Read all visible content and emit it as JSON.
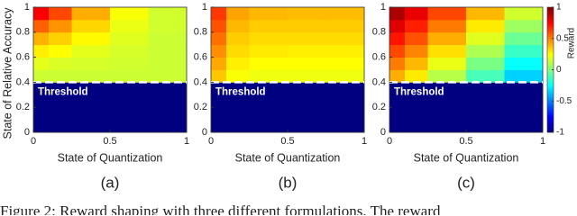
{
  "chart_data": [
    {
      "type": "heatmap",
      "xlabel": "State of Quantization",
      "ylabel": "State of Relative Accuracy",
      "panel_label": "(a)",
      "xlim": [
        0,
        1
      ],
      "ylim": [
        0,
        1
      ],
      "xticks": [
        0,
        0.5,
        1
      ],
      "yticks": [
        0,
        0.2,
        0.4,
        0.6,
        0.8,
        1
      ],
      "xbins": [
        0,
        0.1,
        0.25,
        0.5,
        0.75,
        1
      ],
      "ybins": [
        0,
        0.4,
        0.5,
        0.6,
        0.7,
        0.8,
        0.9,
        1
      ],
      "z": [
        [
          -1,
          -1,
          -1,
          -1,
          -1
        ],
        [
          0.15,
          0.15,
          0.15,
          0.15,
          0.15
        ],
        [
          0.2,
          0.18,
          0.17,
          0.16,
          0.15
        ],
        [
          0.28,
          0.25,
          0.2,
          0.17,
          0.15
        ],
        [
          0.4,
          0.34,
          0.26,
          0.19,
          0.15
        ],
        [
          0.56,
          0.46,
          0.33,
          0.21,
          0.16
        ],
        [
          0.76,
          0.61,
          0.41,
          0.24,
          0.16
        ]
      ],
      "threshold": 0.4,
      "annotation": "Threshold"
    },
    {
      "type": "heatmap",
      "xlabel": "State of Quantization",
      "panel_label": "(b)",
      "xlim": [
        0,
        1
      ],
      "ylim": [
        0,
        1
      ],
      "xticks": [
        0,
        0.5,
        1
      ],
      "yticks": [
        0,
        0.2,
        0.4,
        0.6,
        0.8,
        1
      ],
      "xbins": [
        0,
        0.1,
        0.25,
        0.5,
        0.75,
        1
      ],
      "ybins": [
        0,
        0.4,
        0.5,
        0.6,
        0.7,
        0.8,
        0.9,
        1
      ],
      "z": [
        [
          -1,
          -1,
          -1,
          -1,
          -1
        ],
        [
          0.36,
          0.24,
          0.22,
          0.22,
          0.22
        ],
        [
          0.42,
          0.28,
          0.25,
          0.25,
          0.25
        ],
        [
          0.47,
          0.32,
          0.29,
          0.28,
          0.28
        ],
        [
          0.53,
          0.35,
          0.32,
          0.32,
          0.32
        ],
        [
          0.59,
          0.39,
          0.35,
          0.35,
          0.35
        ],
        [
          0.64,
          0.43,
          0.39,
          0.38,
          0.38
        ]
      ],
      "threshold": 0.4,
      "annotation": "Threshold"
    },
    {
      "type": "heatmap",
      "xlabel": "State of Quantization",
      "panel_label": "(c)",
      "xlim": [
        0,
        1
      ],
      "ylim": [
        0,
        1
      ],
      "xticks": [
        0,
        0.5,
        1
      ],
      "yticks": [
        0,
        0.2,
        0.4,
        0.6,
        0.8,
        1
      ],
      "xbins": [
        0,
        0.1,
        0.25,
        0.5,
        0.75,
        1
      ],
      "ybins": [
        0,
        0.4,
        0.5,
        0.6,
        0.7,
        0.8,
        0.9,
        1
      ],
      "z": [
        [
          -1,
          -1,
          -1,
          -1,
          -1
        ],
        [
          0.41,
          0.29,
          0.11,
          -0.11,
          -0.34
        ],
        [
          0.51,
          0.39,
          0.21,
          -0.01,
          -0.24
        ],
        [
          0.61,
          0.49,
          0.31,
          0.09,
          -0.14
        ],
        [
          0.71,
          0.59,
          0.41,
          0.19,
          -0.04
        ],
        [
          0.81,
          0.69,
          0.51,
          0.29,
          0.06
        ],
        [
          0.91,
          0.79,
          0.61,
          0.39,
          0.16
        ]
      ],
      "threshold": 0.4,
      "annotation": "Threshold",
      "colorbar": {
        "label": "Reward",
        "clim": [
          -1,
          1
        ],
        "ticks": [
          -1,
          -0.5,
          0,
          0.5,
          1
        ],
        "colormap": "jet"
      }
    }
  ],
  "caption": "Figure 2: Reward shaping with three different formulations. The reward"
}
